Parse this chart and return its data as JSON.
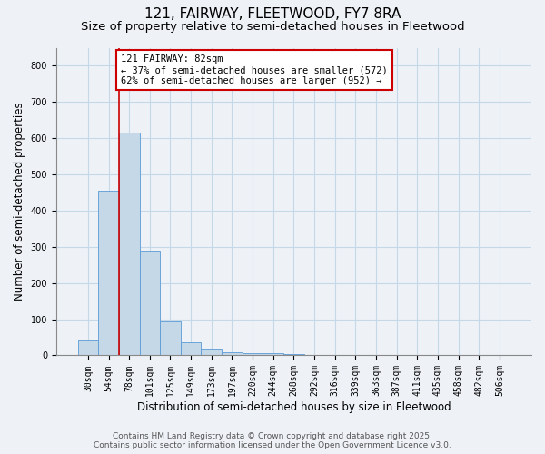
{
  "title": "121, FAIRWAY, FLEETWOOD, FY7 8RA",
  "subtitle": "Size of property relative to semi-detached houses in Fleetwood",
  "xlabel": "Distribution of semi-detached houses by size in Fleetwood",
  "ylabel": "Number of semi-detached properties",
  "categories": [
    "30sqm",
    "54sqm",
    "78sqm",
    "101sqm",
    "125sqm",
    "149sqm",
    "173sqm",
    "197sqm",
    "220sqm",
    "244sqm",
    "268sqm",
    "292sqm",
    "316sqm",
    "339sqm",
    "363sqm",
    "387sqm",
    "411sqm",
    "435sqm",
    "458sqm",
    "482sqm",
    "506sqm"
  ],
  "values": [
    45,
    455,
    615,
    290,
    95,
    37,
    18,
    8,
    5,
    5,
    4,
    0,
    0,
    0,
    0,
    0,
    0,
    0,
    0,
    0,
    0
  ],
  "bar_color": "#c5d8e8",
  "bar_edge_color": "#5b9bd5",
  "red_line_x": 1.5,
  "annotation_text": "121 FAIRWAY: 82sqm\n← 37% of semi-detached houses are smaller (572)\n62% of semi-detached houses are larger (952) →",
  "annotation_box_color": "#ffffff",
  "annotation_box_edge_color": "#cc0000",
  "ylim": [
    0,
    850
  ],
  "yticks": [
    0,
    100,
    200,
    300,
    400,
    500,
    600,
    700,
    800
  ],
  "footer1": "Contains HM Land Registry data © Crown copyright and database right 2025.",
  "footer2": "Contains public sector information licensed under the Open Government Licence v3.0.",
  "background_color": "#eef2f7",
  "plot_bg_color": "#eef2f7",
  "grid_color": "#c5d8e8",
  "title_fontsize": 11,
  "subtitle_fontsize": 9.5,
  "axis_label_fontsize": 8.5,
  "tick_fontsize": 7,
  "footer_fontsize": 6.5,
  "annotation_fontsize": 7.5
}
